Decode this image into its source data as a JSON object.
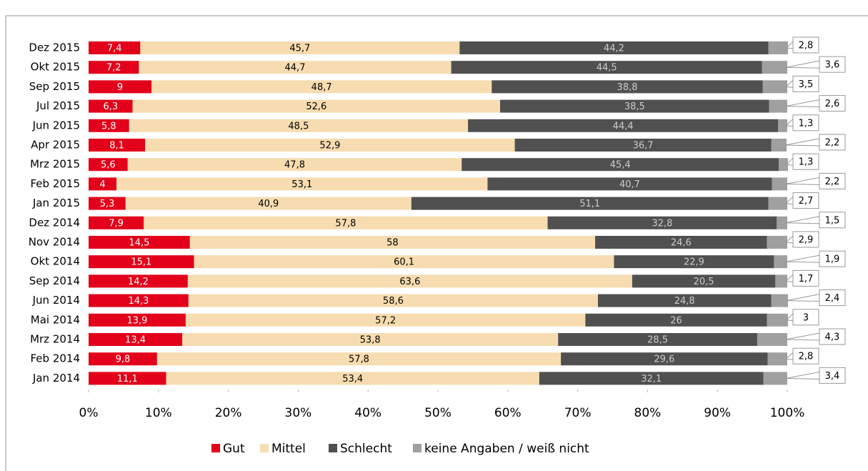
{
  "chart_data": {
    "type": "stacked_barh",
    "categories": [
      "Dez 2015",
      "Okt 2015",
      "Sep 2015",
      "Jul 2015",
      "Jun 2015",
      "Apr 2015",
      "Mrz 2015",
      "Feb 2015",
      "Jan 2015",
      "Dez 2014",
      "Nov 2014",
      "Okt 2014",
      "Sep 2014",
      "Jun 2014",
      "Mai 2014",
      "Mrz 2014",
      "Feb 2014",
      "Jan 2014"
    ],
    "series": [
      {
        "name": "Gut",
        "color": "#e2001a",
        "values": [
          7.4,
          7.2,
          9,
          6.3,
          5.8,
          8.1,
          5.6,
          4,
          5.3,
          7.9,
          14.5,
          15.1,
          14.2,
          14.3,
          13.9,
          13.4,
          9.8,
          11.1
        ],
        "value_labels": [
          "7,4",
          "7,2",
          "9",
          "6,3",
          "5,8",
          "8,1",
          "5,6",
          "4",
          "5,3",
          "7,9",
          "14,5",
          "15,1",
          "14,2",
          "14,3",
          "13,9",
          "13,4",
          "9,8",
          "11,1"
        ]
      },
      {
        "name": "Mittel",
        "color": "#f6dcb0",
        "values": [
          45.7,
          44.7,
          48.7,
          52.6,
          48.5,
          52.9,
          47.8,
          53.1,
          40.9,
          57.8,
          58,
          60.1,
          63.6,
          58.6,
          57.2,
          53.8,
          57.8,
          53.4
        ],
        "value_labels": [
          "45,7",
          "44,7",
          "48,7",
          "52,6",
          "48,5",
          "52,9",
          "47,8",
          "53,1",
          "40,9",
          "57,8",
          "58",
          "60,1",
          "63,6",
          "58,6",
          "57,2",
          "53,8",
          "57,8",
          "53,4"
        ]
      },
      {
        "name": "Schlecht",
        "color": "#505050",
        "values": [
          44.2,
          44.5,
          38.8,
          38.5,
          44.4,
          36.7,
          45.4,
          40.7,
          51.1,
          32.8,
          24.6,
          22.9,
          20.5,
          24.8,
          26,
          28.5,
          29.6,
          32.1
        ],
        "value_labels": [
          "44,2",
          "44,5",
          "38,8",
          "38,5",
          "44,4",
          "36,7",
          "45,4",
          "40,7",
          "51,1",
          "32,8",
          "24,6",
          "22,9",
          "20,5",
          "24,8",
          "26",
          "28,5",
          "29,6",
          "32,1"
        ]
      },
      {
        "name": "keine Angaben / weiß nicht",
        "color": "#a0a0a0",
        "values": [
          2.8,
          3.6,
          3.5,
          2.6,
          1.3,
          2.2,
          1.3,
          2.2,
          2.7,
          1.5,
          2.9,
          1.9,
          1.7,
          2.4,
          3,
          4.3,
          2.8,
          3.4
        ],
        "value_labels": [
          "2,8",
          "3,6",
          "3,5",
          "2,6",
          "1,3",
          "2,2",
          "1,3",
          "2,2",
          "2,7",
          "1,5",
          "2,9",
          "1,9",
          "1,7",
          "2,4",
          "3",
          "4,3",
          "2,8",
          "3,4"
        ]
      }
    ],
    "xlim": [
      0,
      100
    ],
    "xticks": [
      {
        "value": 0,
        "label": "0%"
      },
      {
        "value": 10,
        "label": "10%"
      },
      {
        "value": 20,
        "label": "20%"
      },
      {
        "value": 30,
        "label": "30%"
      },
      {
        "value": 40,
        "label": "40%"
      },
      {
        "value": 50,
        "label": "50%"
      },
      {
        "value": 60,
        "label": "60%"
      },
      {
        "value": 70,
        "label": "70%"
      },
      {
        "value": 80,
        "label": "80%"
      },
      {
        "value": 90,
        "label": "90%"
      },
      {
        "value": 100,
        "label": "100%"
      }
    ]
  }
}
